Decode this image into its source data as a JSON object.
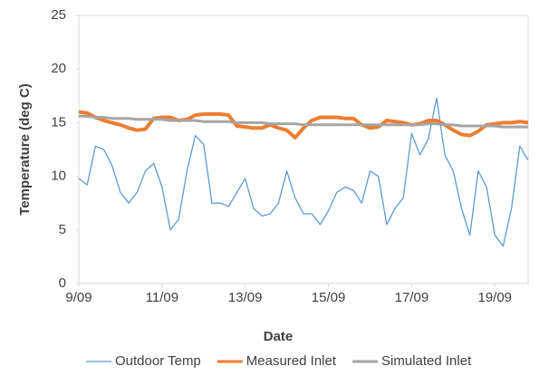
{
  "chart_data": {
    "type": "line",
    "x_label": "Date",
    "y_label": "Temperature (deg C)",
    "x": [
      9.0,
      9.2,
      9.4,
      9.6,
      9.8,
      10.0,
      10.2,
      10.4,
      10.6,
      10.8,
      11.0,
      11.2,
      11.4,
      11.6,
      11.8,
      12.0,
      12.2,
      12.4,
      12.6,
      12.8,
      13.0,
      13.2,
      13.4,
      13.6,
      13.8,
      14.0,
      14.2,
      14.4,
      14.6,
      14.8,
      15.0,
      15.2,
      15.4,
      15.6,
      15.8,
      16.0,
      16.2,
      16.4,
      16.6,
      16.8,
      17.0,
      17.2,
      17.4,
      17.6,
      17.8,
      18.0,
      18.2,
      18.4,
      18.6,
      18.8,
      19.0,
      19.2,
      19.4,
      19.6,
      19.8
    ],
    "series": [
      {
        "name": "Outdoor Temp",
        "color": "#5b9bd5",
        "width": 1.3,
        "values": [
          9.8,
          9.2,
          12.8,
          12.5,
          11,
          8.5,
          7.5,
          8.5,
          10.5,
          11.2,
          9,
          5,
          6,
          10.5,
          13.8,
          13,
          7.5,
          7.5,
          7.2,
          8.5,
          9.8,
          7,
          6.3,
          6.5,
          7.5,
          10.5,
          8,
          6.5,
          6.5,
          5.5,
          6.8,
          8.5,
          9,
          8.7,
          7.5,
          10.5,
          10,
          5.5,
          7,
          8,
          14,
          12,
          13.5,
          17.3,
          12,
          10.5,
          7,
          4.5,
          10.5,
          9,
          4.5,
          3.5,
          7,
          12.8,
          11.5
        ]
      },
      {
        "name": "Measured Inlet",
        "color": "#ed7d31",
        "width": 4,
        "values": [
          16,
          15.9,
          15.5,
          15.2,
          15,
          14.8,
          14.5,
          14.3,
          14.4,
          15.4,
          15.5,
          15.5,
          15.2,
          15.3,
          15.7,
          15.8,
          15.8,
          15.8,
          15.7,
          14.7,
          14.6,
          14.5,
          14.5,
          14.8,
          14.5,
          14.3,
          13.6,
          14.5,
          15.2,
          15.5,
          15.5,
          15.5,
          15.4,
          15.4,
          14.8,
          14.5,
          14.6,
          15.2,
          15.1,
          15,
          14.8,
          14.9,
          15.2,
          15.2,
          14.8,
          14.3,
          13.9,
          13.8,
          14.2,
          14.8,
          14.9,
          15,
          15,
          15.1,
          15
        ]
      },
      {
        "name": "Simulated Inlet",
        "color": "#a5a5a5",
        "width": 3,
        "values": [
          15.6,
          15.6,
          15.5,
          15.5,
          15.4,
          15.4,
          15.4,
          15.3,
          15.3,
          15.3,
          15.3,
          15.2,
          15.2,
          15.2,
          15.2,
          15.1,
          15.1,
          15.1,
          15.1,
          15,
          15,
          15,
          15,
          14.9,
          14.9,
          14.9,
          14.9,
          14.8,
          14.8,
          14.8,
          14.8,
          14.8,
          14.8,
          14.8,
          14.8,
          14.8,
          14.8,
          14.8,
          14.8,
          14.8,
          14.8,
          14.8,
          14.9,
          14.9,
          14.8,
          14.8,
          14.7,
          14.7,
          14.7,
          14.7,
          14.7,
          14.6,
          14.6,
          14.6,
          14.6
        ]
      }
    ],
    "xlim": [
      9,
      19.8
    ],
    "xticks": [
      {
        "value": 9,
        "label": "9/09"
      },
      {
        "value": 11,
        "label": "11/09"
      },
      {
        "value": 13,
        "label": "13/09"
      },
      {
        "value": 15,
        "label": "15/09"
      },
      {
        "value": 17,
        "label": "17/09"
      },
      {
        "value": 19,
        "label": "19/09"
      }
    ],
    "ylim": [
      0,
      25
    ],
    "yticks": [
      0,
      5,
      10,
      15,
      20,
      25
    ],
    "grid": false,
    "legend": "bottom"
  }
}
